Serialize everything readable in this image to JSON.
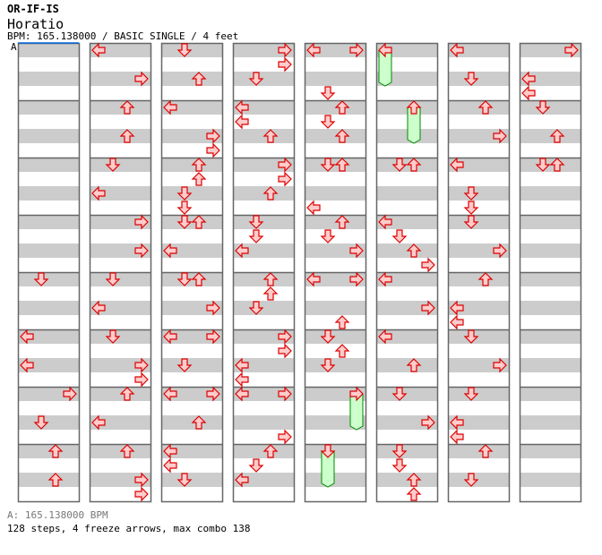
{
  "header": {
    "song_title": "OR-IF-IS",
    "artist": "Horatio",
    "info": "BPM: 165.138000 / BASIC SINGLE / 4 feet",
    "marker_label": "A"
  },
  "footer": {
    "bpm_line": "A: 165.138000 BPM",
    "stats": "128 steps, 4 freeze arrows, max combo 138"
  },
  "colors": {
    "arrow_fill": "#ffcccc",
    "arrow_stroke": "#dd0000",
    "freeze_fill": "#ccffcc",
    "freeze_stroke": "#008800",
    "stripe": "#cccccc",
    "border": "#666666",
    "marker": "#0066dd"
  },
  "chart_data": {
    "type": "step-chart",
    "lanes": [
      "left",
      "down",
      "up",
      "right"
    ],
    "measures_per_column": 8,
    "columns": 8,
    "eighths_per_measure": 8,
    "notes_format": "[measure, eighth, lane]",
    "notes": [
      [
        4,
        0,
        1
      ],
      [
        5,
        0,
        0
      ],
      [
        5,
        4,
        0
      ],
      [
        6,
        0,
        3
      ],
      [
        6,
        4,
        1
      ],
      [
        7,
        0,
        2
      ],
      [
        7,
        4,
        2
      ],
      [
        8,
        0,
        0
      ],
      [
        8,
        4,
        3
      ],
      [
        9,
        0,
        2
      ],
      [
        9,
        4,
        2
      ],
      [
        10,
        0,
        1
      ],
      [
        10,
        4,
        0
      ],
      [
        11,
        0,
        3
      ],
      [
        11,
        4,
        3
      ],
      [
        12,
        0,
        1
      ],
      [
        12,
        4,
        0
      ],
      [
        13,
        0,
        1
      ],
      [
        13,
        4,
        3
      ],
      [
        13,
        6,
        3
      ],
      [
        14,
        0,
        2
      ],
      [
        14,
        4,
        0
      ],
      [
        15,
        0,
        2
      ],
      [
        15,
        4,
        3
      ],
      [
        15,
        6,
        3
      ],
      [
        16,
        0,
        1
      ],
      [
        16,
        4,
        2
      ],
      [
        17,
        0,
        0
      ],
      [
        17,
        4,
        3
      ],
      [
        17,
        6,
        3
      ],
      [
        18,
        0,
        2
      ],
      [
        18,
        2,
        2
      ],
      [
        18,
        4,
        1
      ],
      [
        18,
        6,
        1
      ],
      [
        19,
        0,
        1
      ],
      [
        19,
        0,
        2
      ],
      [
        19,
        4,
        0
      ],
      [
        20,
        0,
        1
      ],
      [
        20,
        0,
        2
      ],
      [
        20,
        4,
        3
      ],
      [
        21,
        0,
        0
      ],
      [
        21,
        0,
        3
      ],
      [
        21,
        4,
        1
      ],
      [
        22,
        0,
        0
      ],
      [
        22,
        0,
        3
      ],
      [
        22,
        4,
        2
      ],
      [
        23,
        0,
        0
      ],
      [
        23,
        2,
        0
      ],
      [
        23,
        4,
        1
      ],
      [
        24,
        0,
        3
      ],
      [
        24,
        2,
        3
      ],
      [
        24,
        4,
        1
      ],
      [
        25,
        0,
        0
      ],
      [
        25,
        2,
        0
      ],
      [
        25,
        4,
        2
      ],
      [
        26,
        0,
        3
      ],
      [
        26,
        2,
        3
      ],
      [
        26,
        4,
        2
      ],
      [
        27,
        0,
        1
      ],
      [
        27,
        2,
        1
      ],
      [
        27,
        4,
        0
      ],
      [
        28,
        0,
        2
      ],
      [
        28,
        2,
        2
      ],
      [
        28,
        4,
        1
      ],
      [
        29,
        0,
        3
      ],
      [
        29,
        2,
        3
      ],
      [
        29,
        4,
        0
      ],
      [
        29,
        6,
        0
      ],
      [
        30,
        0,
        0
      ],
      [
        30,
        0,
        3
      ],
      [
        30,
        6,
        3
      ],
      [
        31,
        0,
        2
      ],
      [
        31,
        2,
        1
      ],
      [
        31,
        4,
        0
      ],
      [
        32,
        0,
        0
      ],
      [
        32,
        0,
        3
      ],
      [
        32,
        6,
        1
      ],
      [
        33,
        0,
        2
      ],
      [
        33,
        2,
        1
      ],
      [
        33,
        4,
        2
      ],
      [
        34,
        0,
        1
      ],
      [
        34,
        0,
        2
      ],
      [
        34,
        6,
        0
      ],
      [
        35,
        0,
        2
      ],
      [
        35,
        2,
        1
      ],
      [
        35,
        4,
        3
      ],
      [
        36,
        0,
        0
      ],
      [
        36,
        0,
        3
      ],
      [
        36,
        6,
        2
      ],
      [
        37,
        0,
        1
      ],
      [
        37,
        2,
        2
      ],
      [
        37,
        4,
        1
      ],
      [
        42,
        0,
        1
      ],
      [
        42,
        0,
        2
      ],
      [
        43,
        0,
        0
      ],
      [
        43,
        2,
        1
      ],
      [
        43,
        4,
        2
      ],
      [
        43,
        6,
        3
      ],
      [
        44,
        0,
        0
      ],
      [
        44,
        4,
        3
      ],
      [
        45,
        0,
        0
      ],
      [
        45,
        4,
        2
      ],
      [
        46,
        0,
        1
      ],
      [
        46,
        4,
        3
      ],
      [
        47,
        0,
        1
      ],
      [
        47,
        2,
        1
      ],
      [
        47,
        4,
        2
      ],
      [
        47,
        6,
        2
      ],
      [
        48,
        0,
        0
      ],
      [
        48,
        4,
        1
      ],
      [
        49,
        0,
        2
      ],
      [
        49,
        4,
        3
      ],
      [
        50,
        0,
        0
      ],
      [
        50,
        4,
        1
      ],
      [
        50,
        6,
        1
      ],
      [
        51,
        0,
        1
      ],
      [
        51,
        4,
        3
      ],
      [
        52,
        0,
        2
      ],
      [
        52,
        4,
        0
      ],
      [
        52,
        6,
        0
      ],
      [
        53,
        0,
        1
      ],
      [
        53,
        4,
        3
      ],
      [
        54,
        0,
        1
      ],
      [
        54,
        4,
        0
      ],
      [
        54,
        6,
        0
      ],
      [
        55,
        0,
        2
      ],
      [
        55,
        4,
        1
      ],
      [
        56,
        0,
        3
      ],
      [
        56,
        4,
        0
      ],
      [
        56,
        6,
        0
      ],
      [
        57,
        0,
        1
      ],
      [
        57,
        4,
        2
      ],
      [
        58,
        0,
        1
      ],
      [
        58,
        0,
        2
      ]
    ],
    "freezes_format": "[measure, eighth, lane, length_in_eighths]",
    "freezes": [
      [
        38,
        0,
        3,
        6
      ],
      [
        39,
        0,
        1,
        6
      ],
      [
        40,
        0,
        0,
        6
      ],
      [
        41,
        0,
        2,
        6
      ]
    ]
  }
}
